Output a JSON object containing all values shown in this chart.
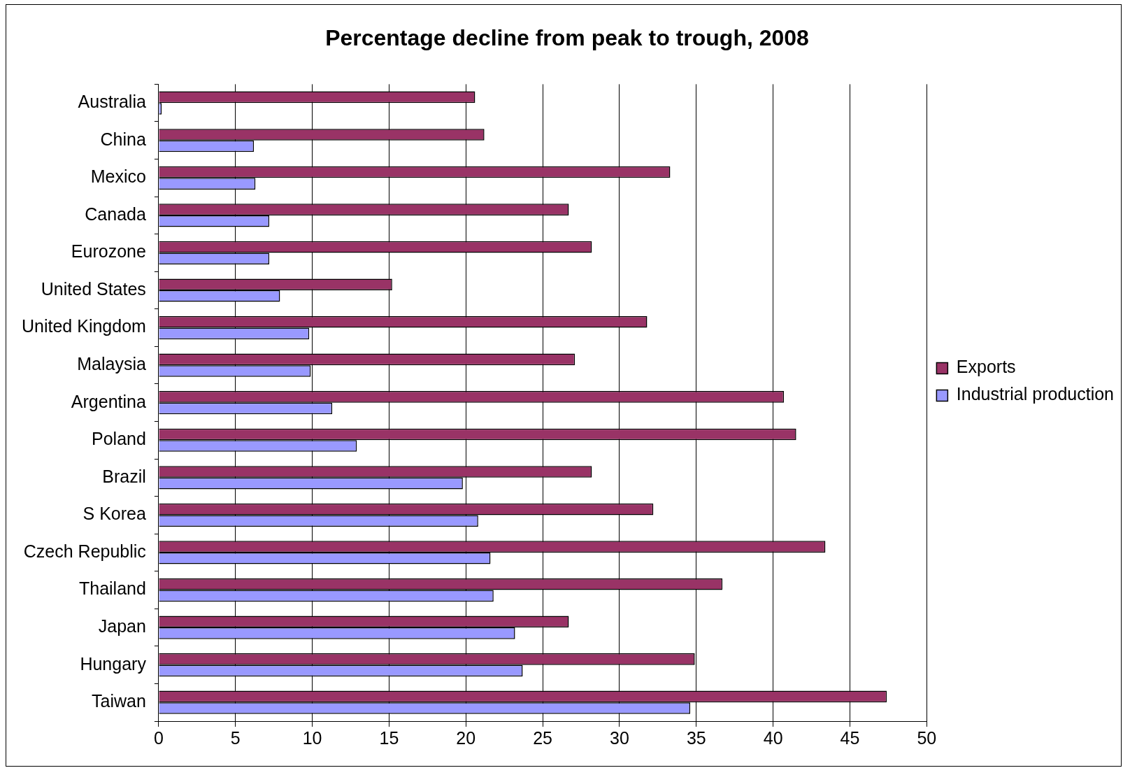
{
  "chart_data": {
    "type": "bar",
    "orientation": "horizontal",
    "title": "Percentage decline from peak to trough, 2008",
    "categories": [
      "Australia",
      "China",
      "Mexico",
      "Canada",
      "Eurozone",
      "United States",
      "United Kingdom",
      "Malaysia",
      "Argentina",
      "Poland",
      "Brazil",
      "S Korea",
      "Czech Republic",
      "Thailand",
      "Japan",
      "Hungary",
      "Taiwan"
    ],
    "series": [
      {
        "name": "Exports",
        "color": "#993366",
        "values": [
          20.6,
          21.2,
          33.3,
          26.7,
          28.2,
          15.2,
          31.8,
          27.1,
          40.7,
          41.5,
          28.2,
          32.2,
          43.4,
          36.7,
          26.7,
          34.9,
          47.4
        ]
      },
      {
        "name": "Industrial production",
        "color": "#9999ff",
        "values": [
          0.2,
          6.2,
          6.3,
          7.2,
          7.2,
          7.9,
          9.8,
          9.9,
          11.3,
          12.9,
          19.8,
          20.8,
          21.6,
          21.8,
          23.2,
          23.7,
          34.6
        ]
      }
    ],
    "xlim": [
      0,
      50
    ],
    "xticks": [
      0,
      5,
      10,
      15,
      20,
      25,
      30,
      35,
      40,
      45,
      50
    ],
    "grid": "x",
    "legend": "right"
  }
}
